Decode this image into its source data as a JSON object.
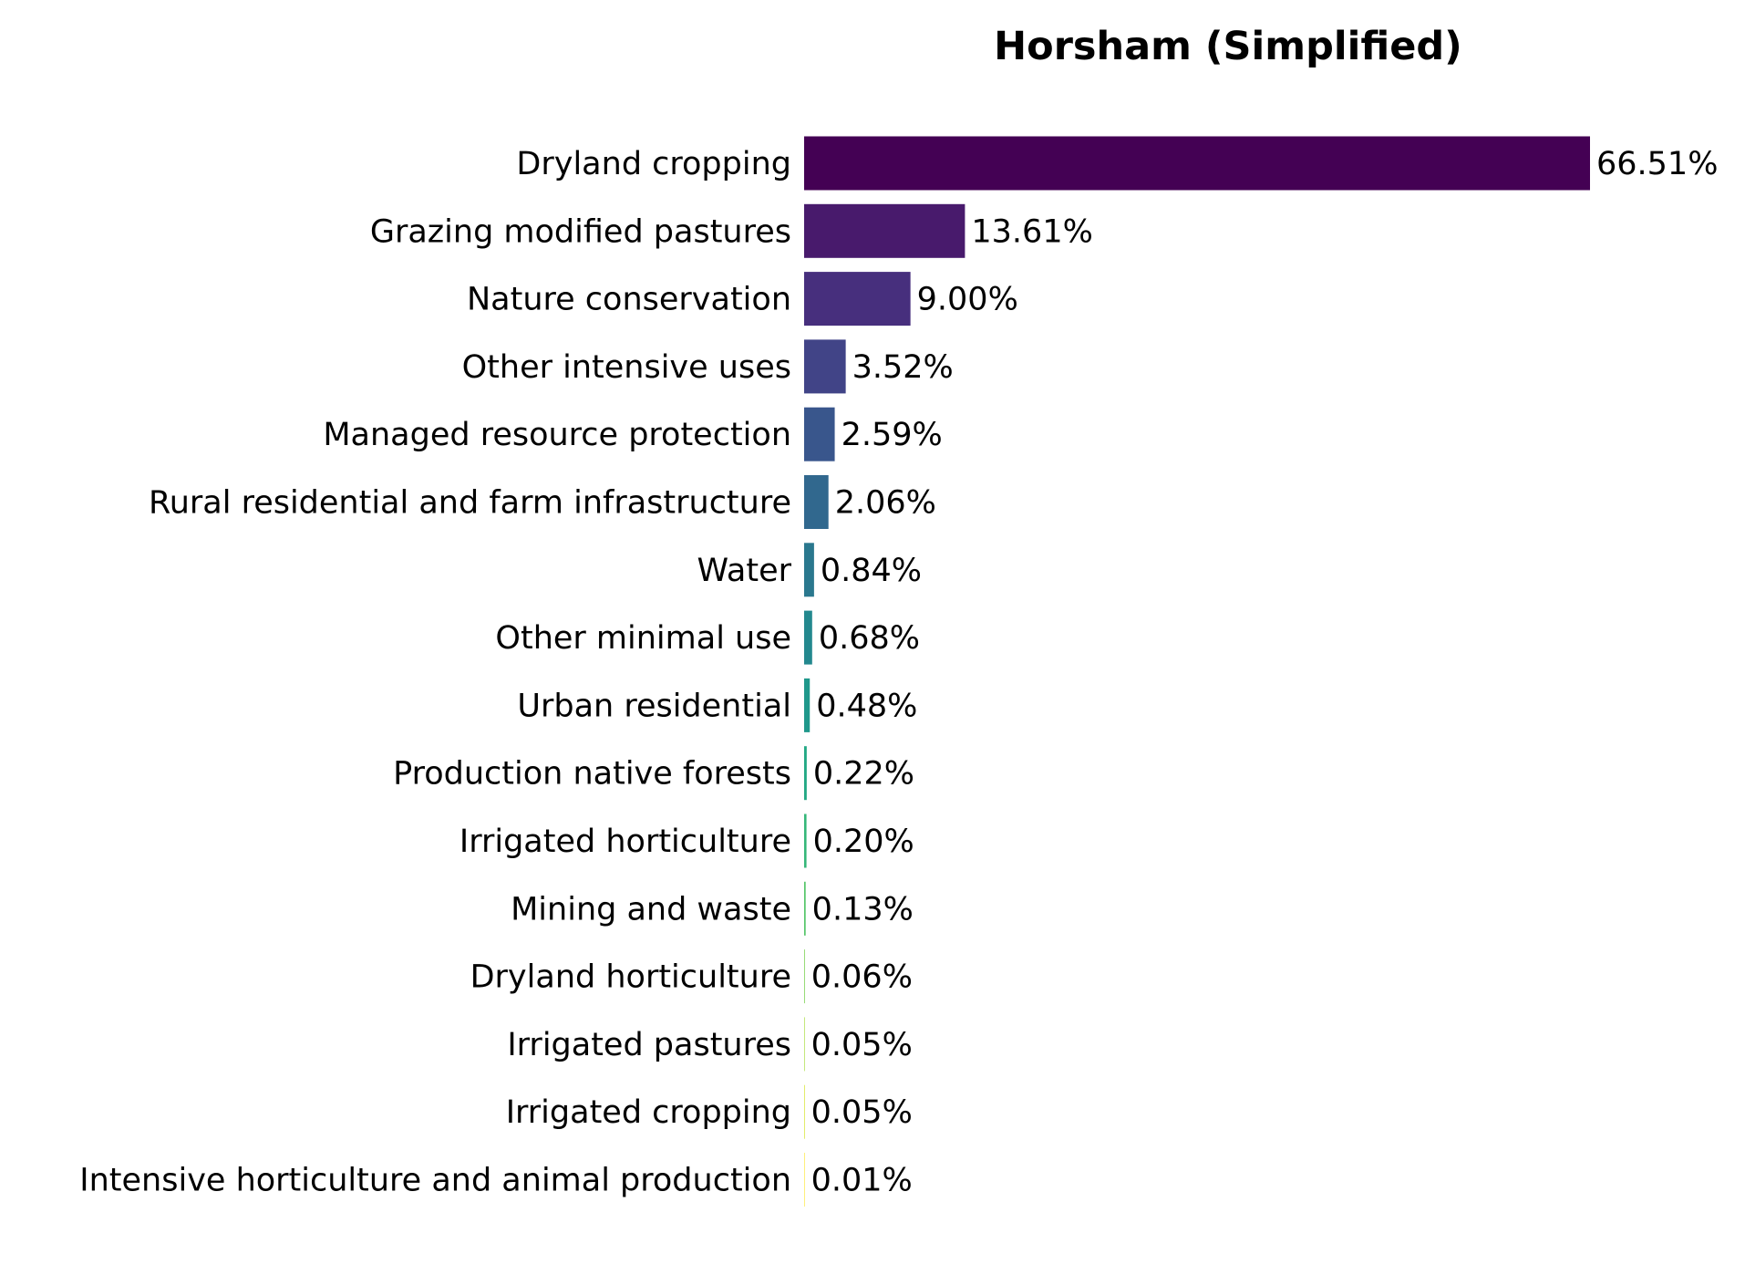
{
  "chart_data": {
    "type": "bar",
    "orientation": "horizontal",
    "title": "Horsham (Simplified)",
    "xlabel": "",
    "ylabel": "",
    "xlim": [
      0,
      70
    ],
    "grid": false,
    "legend": "none",
    "categories": [
      "Dryland cropping",
      "Grazing modified pastures",
      "Nature conservation",
      "Other intensive uses",
      "Managed resource protection",
      "Rural residential and farm infrastructure",
      "Water",
      "Other minimal use",
      "Urban residential",
      "Production native forests",
      "Irrigated horticulture",
      "Mining and waste",
      "Dryland horticulture",
      "Irrigated pastures",
      "Irrigated cropping",
      "Intensive horticulture and animal production"
    ],
    "values": [
      66.51,
      13.61,
      9.0,
      3.52,
      2.59,
      2.06,
      0.84,
      0.68,
      0.48,
      0.22,
      0.2,
      0.13,
      0.06,
      0.05,
      0.05,
      0.01
    ],
    "value_labels": [
      "66.51%",
      "13.61%",
      "9.00%",
      "3.52%",
      "2.59%",
      "2.06%",
      "0.84%",
      "0.68%",
      "0.48%",
      "0.22%",
      "0.20%",
      "0.13%",
      "0.06%",
      "0.05%",
      "0.05%",
      "0.01%"
    ],
    "colors": [
      "#440154",
      "#481a6c",
      "#472f7d",
      "#414487",
      "#39568c",
      "#31688e",
      "#2a788e",
      "#23888e",
      "#1f988b",
      "#22a884",
      "#35b779",
      "#54c568",
      "#7ad151",
      "#a5db36",
      "#d2e21b",
      "#fde725"
    ]
  }
}
